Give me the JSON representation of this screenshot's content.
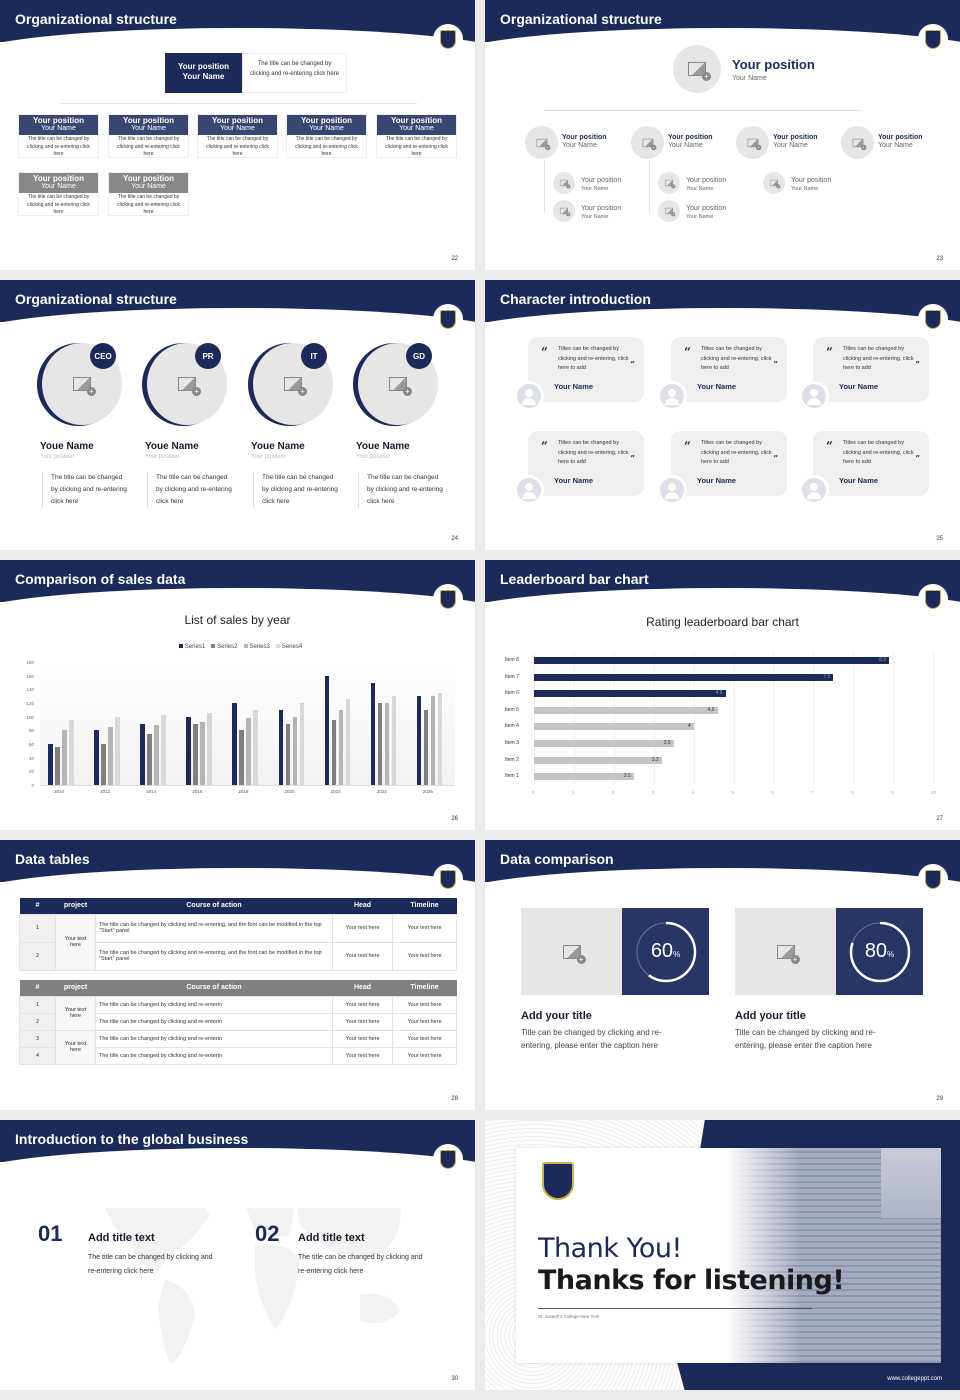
{
  "slides": {
    "s22": {
      "title": "Organizational structure",
      "page": "22",
      "top": {
        "position": "Your position",
        "name": "Your Name",
        "desc": "The title can be changed by clicking and re-entering click here"
      },
      "cards": [
        {
          "position": "Your position",
          "name": "Your Name",
          "desc": "The title can be changed by clicking and re-entering click here",
          "style": "navy"
        },
        {
          "position": "Your position",
          "name": "Your Name",
          "desc": "The title can be changed by clicking and re-entering click here",
          "style": "navy"
        },
        {
          "position": "Your position",
          "name": "Your Name",
          "desc": "The title can be changed by clicking and re-entering click here",
          "style": "navy"
        },
        {
          "position": "Your position",
          "name": "Your Name",
          "desc": "The title can be changed by clicking and re-entering click here",
          "style": "navy"
        },
        {
          "position": "Your position",
          "name": "Your Name",
          "desc": "The title can be changed by clicking and re-entering click here",
          "style": "navy"
        },
        {
          "position": "Your position",
          "name": "Your Name",
          "desc": "The title can be changed by clicking and re-entering click here",
          "style": "gray"
        },
        {
          "position": "Your position",
          "name": "Your Name",
          "desc": "The title can be changed by clicking and re-entering click here",
          "style": "gray"
        }
      ]
    },
    "s23": {
      "title": "Organizational structure",
      "page": "23",
      "top": {
        "position": "Your position",
        "name": "Your Name"
      },
      "level1": [
        {
          "position": "Your position",
          "name": "Your Name"
        },
        {
          "position": "Your position",
          "name": "Your Name"
        },
        {
          "position": "Your position",
          "name": "Your Name"
        },
        {
          "position": "Your position",
          "name": "Your Name"
        }
      ],
      "level2": [
        {
          "position": "Your position",
          "name": "Your Name"
        },
        {
          "position": "Your position",
          "name": "Your Name"
        },
        {
          "position": "Your position",
          "name": "Your Name"
        },
        {
          "position": "Your position",
          "name": "Your Name"
        },
        {
          "position": "Your position",
          "name": "Your Name"
        }
      ]
    },
    "s24": {
      "title": "Organizational structure",
      "page": "24",
      "people": [
        {
          "badge": "CEO",
          "name": "Youe Name",
          "position": "Your position",
          "desc": "The title can be changed by clicking and re-entering click here"
        },
        {
          "badge": "PR",
          "name": "Youe Name",
          "position": "Your position",
          "desc": "The title can be changed by clicking and re-entering click here"
        },
        {
          "badge": "IT",
          "name": "Youe Name",
          "position": "Your position",
          "desc": "The title can be changed by clicking and re-entering click here"
        },
        {
          "badge": "GD",
          "name": "Youe Name",
          "position": "Your position",
          "desc": "The title can be changed by clicking and re-entering click here"
        }
      ]
    },
    "s25": {
      "title": "Character introduction",
      "page": "25",
      "quotes": [
        {
          "text": "Titles can be changed by clicking and re-entering, click here to add",
          "name": "Your Name"
        },
        {
          "text": "Titles can be changed by clicking and re-entering, click here to add",
          "name": "Your Name"
        },
        {
          "text": "Titles can be changed by clicking and re-entering, click here to add",
          "name": "Your Name"
        },
        {
          "text": "Titles can be changed by clicking and re-entering, click here to add",
          "name": "Your Name"
        },
        {
          "text": "Titles can be changed by clicking and re-entering, click here to add",
          "name": "Your Name"
        },
        {
          "text": "Titles can be changed by clicking and re-entering, click here to add",
          "name": "Your Name"
        }
      ]
    },
    "s26": {
      "title": "Comparison of sales data",
      "page": "26"
    },
    "s27": {
      "title": "Leaderboard bar chart",
      "page": "27"
    },
    "s28": {
      "title": "Data tables",
      "page": "28",
      "headers": [
        "#",
        "project",
        "Course of action",
        "Head",
        "Timeline"
      ],
      "table1": {
        "project": "Your text here",
        "rows": [
          {
            "n": "1",
            "action": "The title can be changed by clicking and re-entering, and the font can be modified in the top \"Start\" panel",
            "head": "Your text here",
            "timeline": "Your text here"
          },
          {
            "n": "2",
            "action": "The title can be changed by clicking and re-entering, and the font can be modified in the top \"Start\" panel",
            "head": "Your text here",
            "timeline": "Your text here"
          }
        ]
      },
      "table2": {
        "projects": [
          "Your text here",
          "Your text here"
        ],
        "rows": [
          {
            "n": "1",
            "action": "The title can be changed by clicking and re-enterin",
            "head": "Your text here",
            "timeline": "Your text here"
          },
          {
            "n": "2",
            "action": "The title can be changed by clicking and re-enterin",
            "head": "Your text here",
            "timeline": "Your text here"
          },
          {
            "n": "3",
            "action": "The title can be changed by clicking and re-enterin",
            "head": "Your text here",
            "timeline": "Your text here"
          },
          {
            "n": "4",
            "action": "The title can be changed by clicking and re-enterin",
            "head": "Your text here",
            "timeline": "Your text here"
          }
        ]
      }
    },
    "s29": {
      "title": "Data comparison",
      "page": "29",
      "items": [
        {
          "value": "60",
          "unit": "%",
          "title": "Add your title",
          "desc": "Title can be changed by clicking and re-entering, please enter the caption here"
        },
        {
          "value": "80",
          "unit": "%",
          "title": "Add your title",
          "desc": "Title can be changed by clicking and re-entering, please enter the caption here"
        }
      ]
    },
    "s30": {
      "title": "Introduction to the global business",
      "page": "30",
      "items": [
        {
          "num": "01",
          "title": "Add title text",
          "desc": "The title can be changed by clicking and re-entering click here"
        },
        {
          "num": "02",
          "title": "Add title text",
          "desc": "The title can be changed by clicking and re-entering click here"
        }
      ]
    },
    "s31": {
      "line1": "Thank You!",
      "line2": "Thanks for listening!",
      "subtitle": "St. Joseph's College-New York",
      "url": "www.collegeppt.com"
    }
  },
  "colors": {
    "navy": "#1c2a5a",
    "navy_mid": "#3a4672",
    "gray": "#808080",
    "light_gray": "#e6e6e6",
    "gold": "#c9b24a"
  },
  "chart_data": [
    {
      "type": "bar",
      "title": "List of sales by year",
      "categories": [
        "2010",
        "2012",
        "2014",
        "2016",
        "2018",
        "2020",
        "2022",
        "2024",
        "2026"
      ],
      "series": [
        {
          "name": "Series1",
          "color": "#1c2a5a",
          "values": [
            60,
            80,
            90,
            100,
            120,
            110,
            160,
            150,
            130
          ]
        },
        {
          "name": "Series2",
          "color": "#808080",
          "values": [
            55,
            60,
            75,
            90,
            80,
            90,
            95,
            120,
            110
          ]
        },
        {
          "name": "Series3",
          "color": "#b5b5b5",
          "values": [
            80,
            85,
            88,
            92,
            98,
            100,
            110,
            120,
            130
          ]
        },
        {
          "name": "Series4",
          "color": "#d8d8d8",
          "values": [
            95,
            99,
            102,
            105,
            110,
            120,
            126,
            130,
            135
          ]
        }
      ],
      "yticks": [
        0,
        20,
        40,
        60,
        80,
        100,
        120,
        140,
        160,
        180
      ],
      "ylim": [
        0,
        180
      ],
      "legend_position": "top",
      "grid": false,
      "xlabel": "",
      "ylabel": ""
    },
    {
      "type": "bar",
      "orientation": "horizontal",
      "title": "Rating leaderboard bar chart",
      "categories": [
        "Item 8",
        "Item 7",
        "Item 6",
        "Item 5",
        "Item 4",
        "Item 3",
        "Item 2",
        "Item 1"
      ],
      "values": [
        8.9,
        7.5,
        4.8,
        4.6,
        4,
        3.5,
        3.2,
        2.5
      ],
      "highlight_top": 3,
      "xticks": [
        0,
        1,
        2,
        3,
        4,
        5,
        6,
        7,
        8,
        9,
        10
      ],
      "xlim": [
        0,
        10
      ],
      "grid": true,
      "xlabel": "",
      "ylabel": ""
    }
  ]
}
